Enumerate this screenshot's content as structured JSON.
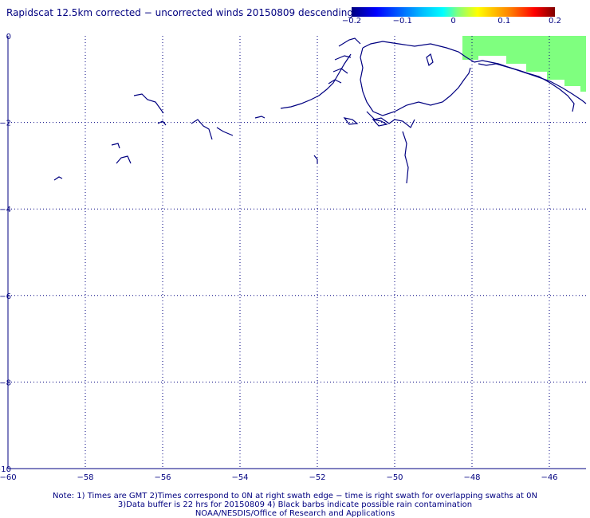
{
  "title": "Rapidscat 12.5km corrected − uncorrected winds 20150809 descending",
  "colorbar": {
    "ticks": [
      "−0.2",
      "−0.1",
      "0",
      "0.1",
      "0.2"
    ],
    "colors": [
      "#00007f",
      "#0000ff",
      "#007fff",
      "#00ffff",
      "#7fff7f",
      "#ffff00",
      "#ff7f00",
      "#ff0000",
      "#7f0000"
    ]
  },
  "map": {
    "x_axis_labels": [
      "−60",
      "−58",
      "−56",
      "−54",
      "−52",
      "−50",
      "−48",
      "−46"
    ],
    "y_axis_labels": [
      "0",
      "−2",
      "−4",
      "−6",
      "−8",
      "−10"
    ],
    "coastline_color": "#000080",
    "wind_diff_region_color": "#7fff7f",
    "grid_color": "#000080"
  },
  "notes": {
    "line1": "Note: 1) Times are GMT 2)Times correspond to 0N at right swath edge − time is right swath for overlapping swaths at 0N",
    "line2": "3)Data buffer is 22 hrs for 20150809 4) Black barbs indicate possible rain contamination",
    "line3": "NOAA/NESDIS/Office of Research and Applications"
  }
}
